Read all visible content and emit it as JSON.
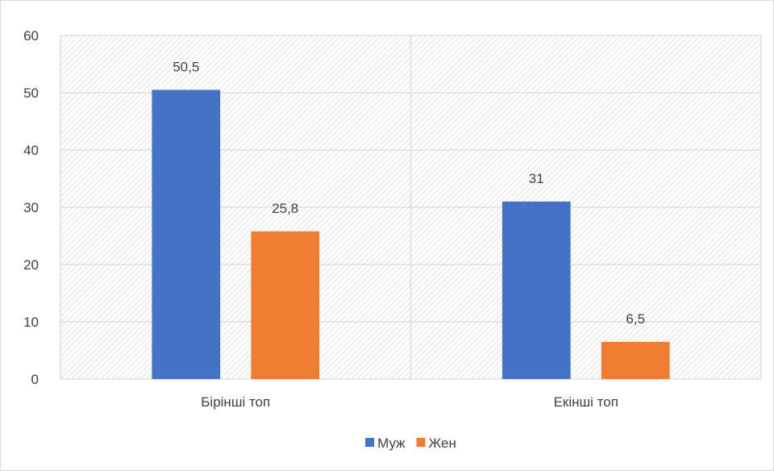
{
  "chart_data": {
    "type": "bar",
    "categories": [
      "Бірінші топ",
      "Екінші топ"
    ],
    "series": [
      {
        "name": "Муж",
        "values": [
          50.5,
          31
        ],
        "value_labels": [
          "50,5",
          "31"
        ],
        "color": "#4472C4"
      },
      {
        "name": "Жен",
        "values": [
          25.8,
          6.5
        ],
        "value_labels": [
          "25,8",
          "6,5"
        ],
        "color": "#ED7D31"
      }
    ],
    "title": "",
    "xlabel": "",
    "ylabel": "",
    "ylim": [
      0,
      60
    ],
    "yticks": [
      0,
      10,
      20,
      30,
      40,
      50,
      60
    ],
    "grid": true,
    "plot_background": "diagonal-hatch",
    "legend_position": "bottom"
  }
}
